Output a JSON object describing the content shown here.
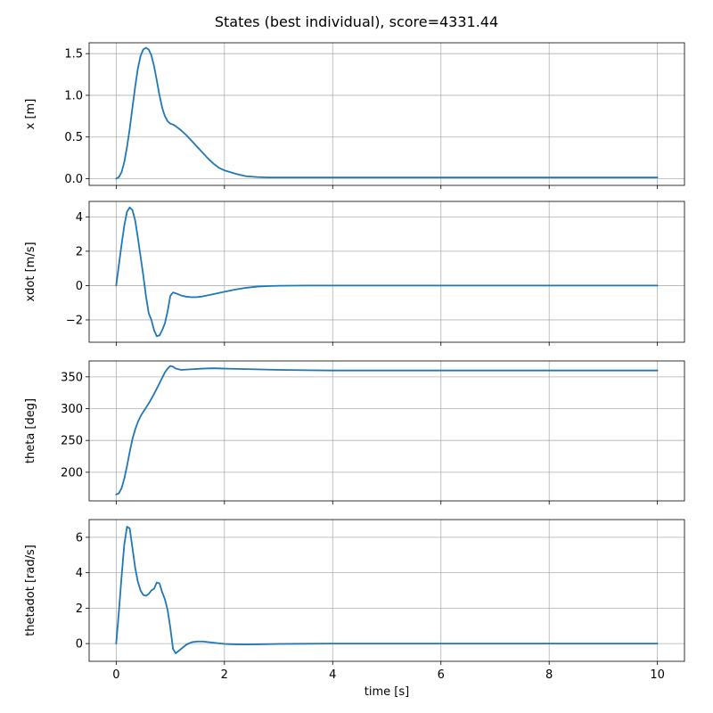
{
  "title": "States (best individual), score=4331.44",
  "colors": {
    "line": "#1f77b4",
    "grid": "#b0b0b0",
    "axes": "#000000"
  },
  "chart_data": [
    {
      "type": "line",
      "ylabel": "x [m]",
      "xlabel": "",
      "xlim": [
        -0.5,
        10.5
      ],
      "ylim": [
        -0.08,
        1.63
      ],
      "xticks": [
        0,
        2,
        4,
        6,
        8,
        10
      ],
      "yticks": [
        0.0,
        0.5,
        1.0,
        1.5
      ],
      "ytick_labels": [
        "0.0",
        "0.5",
        "1.0",
        "1.5"
      ],
      "xtick_labels_visible": false,
      "grid": true,
      "x": [
        0,
        0.05,
        0.1,
        0.15,
        0.2,
        0.25,
        0.3,
        0.35,
        0.4,
        0.45,
        0.5,
        0.55,
        0.6,
        0.65,
        0.7,
        0.75,
        0.8,
        0.85,
        0.9,
        0.95,
        1.0,
        1.05,
        1.1,
        1.2,
        1.3,
        1.4,
        1.5,
        1.6,
        1.7,
        1.8,
        1.9,
        2.0,
        2.2,
        2.4,
        2.6,
        2.8,
        3.0,
        3.5,
        4,
        5,
        6,
        7,
        8,
        9,
        10
      ],
      "y": [
        0.0,
        0.02,
        0.08,
        0.2,
        0.38,
        0.6,
        0.85,
        1.1,
        1.32,
        1.47,
        1.55,
        1.57,
        1.55,
        1.48,
        1.35,
        1.18,
        1.0,
        0.85,
        0.75,
        0.69,
        0.66,
        0.65,
        0.63,
        0.58,
        0.52,
        0.45,
        0.38,
        0.31,
        0.24,
        0.18,
        0.13,
        0.1,
        0.06,
        0.03,
        0.02,
        0.015,
        0.015,
        0.015,
        0.015,
        0.015,
        0.015,
        0.015,
        0.015,
        0.015,
        0.015
      ]
    },
    {
      "type": "line",
      "ylabel": "xdot [m/s]",
      "xlabel": "",
      "xlim": [
        -0.5,
        10.5
      ],
      "ylim": [
        -3.3,
        4.9
      ],
      "xticks": [
        0,
        2,
        4,
        6,
        8,
        10
      ],
      "yticks": [
        -2,
        0,
        2,
        4
      ],
      "ytick_labels": [
        "−2",
        "0",
        "2",
        "4"
      ],
      "xtick_labels_visible": false,
      "grid": true,
      "x": [
        0,
        0.05,
        0.1,
        0.15,
        0.2,
        0.25,
        0.3,
        0.35,
        0.4,
        0.45,
        0.5,
        0.55,
        0.6,
        0.65,
        0.7,
        0.75,
        0.8,
        0.85,
        0.9,
        0.95,
        1.0,
        1.05,
        1.1,
        1.2,
        1.3,
        1.4,
        1.5,
        1.6,
        1.8,
        2.0,
        2.2,
        2.4,
        2.6,
        2.8,
        3.0,
        3.5,
        4,
        5,
        6,
        7,
        8,
        9,
        10
      ],
      "y": [
        0.0,
        1.2,
        2.4,
        3.5,
        4.3,
        4.55,
        4.4,
        3.8,
        2.8,
        1.7,
        0.6,
        -0.6,
        -1.6,
        -2.0,
        -2.6,
        -2.95,
        -2.9,
        -2.6,
        -2.2,
        -1.5,
        -0.6,
        -0.4,
        -0.45,
        -0.58,
        -0.65,
        -0.68,
        -0.67,
        -0.63,
        -0.5,
        -0.36,
        -0.23,
        -0.13,
        -0.06,
        -0.03,
        -0.01,
        0.0,
        0.0,
        0.0,
        0.0,
        0.0,
        0.0,
        0.0,
        0.0
      ]
    },
    {
      "type": "line",
      "ylabel": "theta [deg]",
      "xlabel": "",
      "xlim": [
        -0.5,
        10.5
      ],
      "ylim": [
        155,
        375
      ],
      "xticks": [
        0,
        2,
        4,
        6,
        8,
        10
      ],
      "yticks": [
        200,
        250,
        300,
        350
      ],
      "ytick_labels": [
        "200",
        "250",
        "300",
        "350"
      ],
      "xtick_labels_visible": false,
      "grid": true,
      "x": [
        0,
        0.05,
        0.1,
        0.15,
        0.2,
        0.25,
        0.3,
        0.35,
        0.4,
        0.45,
        0.5,
        0.6,
        0.7,
        0.8,
        0.9,
        0.95,
        1.0,
        1.05,
        1.1,
        1.2,
        1.3,
        1.4,
        1.6,
        1.8,
        2.0,
        2.5,
        3.0,
        3.5,
        4,
        5,
        6,
        7,
        8,
        9,
        10
      ],
      "y": [
        165,
        167,
        175,
        190,
        210,
        232,
        252,
        267,
        279,
        288,
        295,
        308,
        323,
        340,
        357,
        363,
        367,
        366,
        363,
        361,
        361.5,
        362,
        363,
        363.5,
        363,
        362,
        361,
        360.5,
        360,
        360,
        360,
        360,
        360,
        360,
        360
      ]
    },
    {
      "type": "line",
      "ylabel": "thetadot [rad/s]",
      "xlabel": "time [s]",
      "xlim": [
        -0.5,
        10.5
      ],
      "ylim": [
        -1.0,
        7.0
      ],
      "xticks": [
        0,
        2,
        4,
        6,
        8,
        10
      ],
      "xtick_labels": [
        "0",
        "2",
        "4",
        "6",
        "8",
        "10"
      ],
      "yticks": [
        0,
        2,
        4,
        6
      ],
      "ytick_labels": [
        "0",
        "2",
        "4",
        "6"
      ],
      "xtick_labels_visible": true,
      "grid": true,
      "x": [
        0,
        0.05,
        0.1,
        0.15,
        0.2,
        0.25,
        0.3,
        0.35,
        0.4,
        0.45,
        0.5,
        0.55,
        0.6,
        0.65,
        0.7,
        0.75,
        0.8,
        0.85,
        0.9,
        0.95,
        1.0,
        1.05,
        1.1,
        1.2,
        1.3,
        1.4,
        1.5,
        1.6,
        1.8,
        2.0,
        2.2,
        2.4,
        2.6,
        2.8,
        3.0,
        3.5,
        4,
        5,
        6,
        7,
        8,
        9,
        10
      ],
      "y": [
        0.0,
        1.8,
        3.8,
        5.6,
        6.6,
        6.5,
        5.4,
        4.3,
        3.5,
        3.0,
        2.75,
        2.7,
        2.8,
        3.0,
        3.1,
        3.45,
        3.4,
        2.9,
        2.5,
        1.9,
        0.9,
        -0.3,
        -0.55,
        -0.3,
        -0.05,
        0.08,
        0.12,
        0.12,
        0.05,
        -0.02,
        -0.04,
        -0.05,
        -0.04,
        -0.03,
        -0.02,
        -0.01,
        0.0,
        0.0,
        0.0,
        0.0,
        0.0,
        0.0,
        0.0
      ]
    }
  ]
}
